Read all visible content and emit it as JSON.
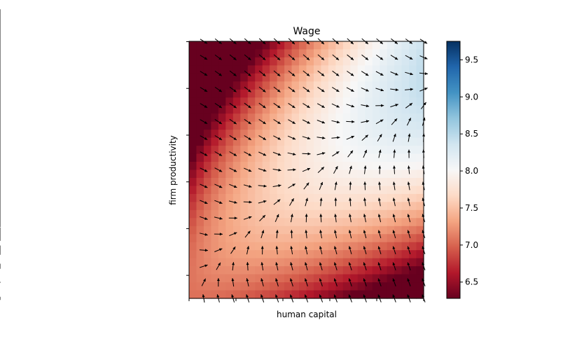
{
  "chart_data": {
    "type": "heatmap",
    "title": "Wage",
    "xlabel": "human capital",
    "ylabel": "firm productivity",
    "x_tick_labels_shown": false,
    "y_tick_labels_shown": false,
    "grid": false,
    "overlay": "quiver (gradient arrows)",
    "colormap": "RdBu",
    "colorbar": {
      "position": "right",
      "range": [
        6.28,
        9.75
      ],
      "ticks": [
        "6.5",
        "7.0",
        "7.5",
        "8.0",
        "8.5",
        "9.0",
        "9.5"
      ]
    },
    "grid_size": [
      32,
      32
    ],
    "quiver_grid": [
      17,
      17
    ],
    "value_range": [
      6.28,
      9.75
    ],
    "colors": {
      "low": "#67001f",
      "mid": "#f7f7f7",
      "high": "#053061",
      "arrow": "#000000"
    }
  }
}
